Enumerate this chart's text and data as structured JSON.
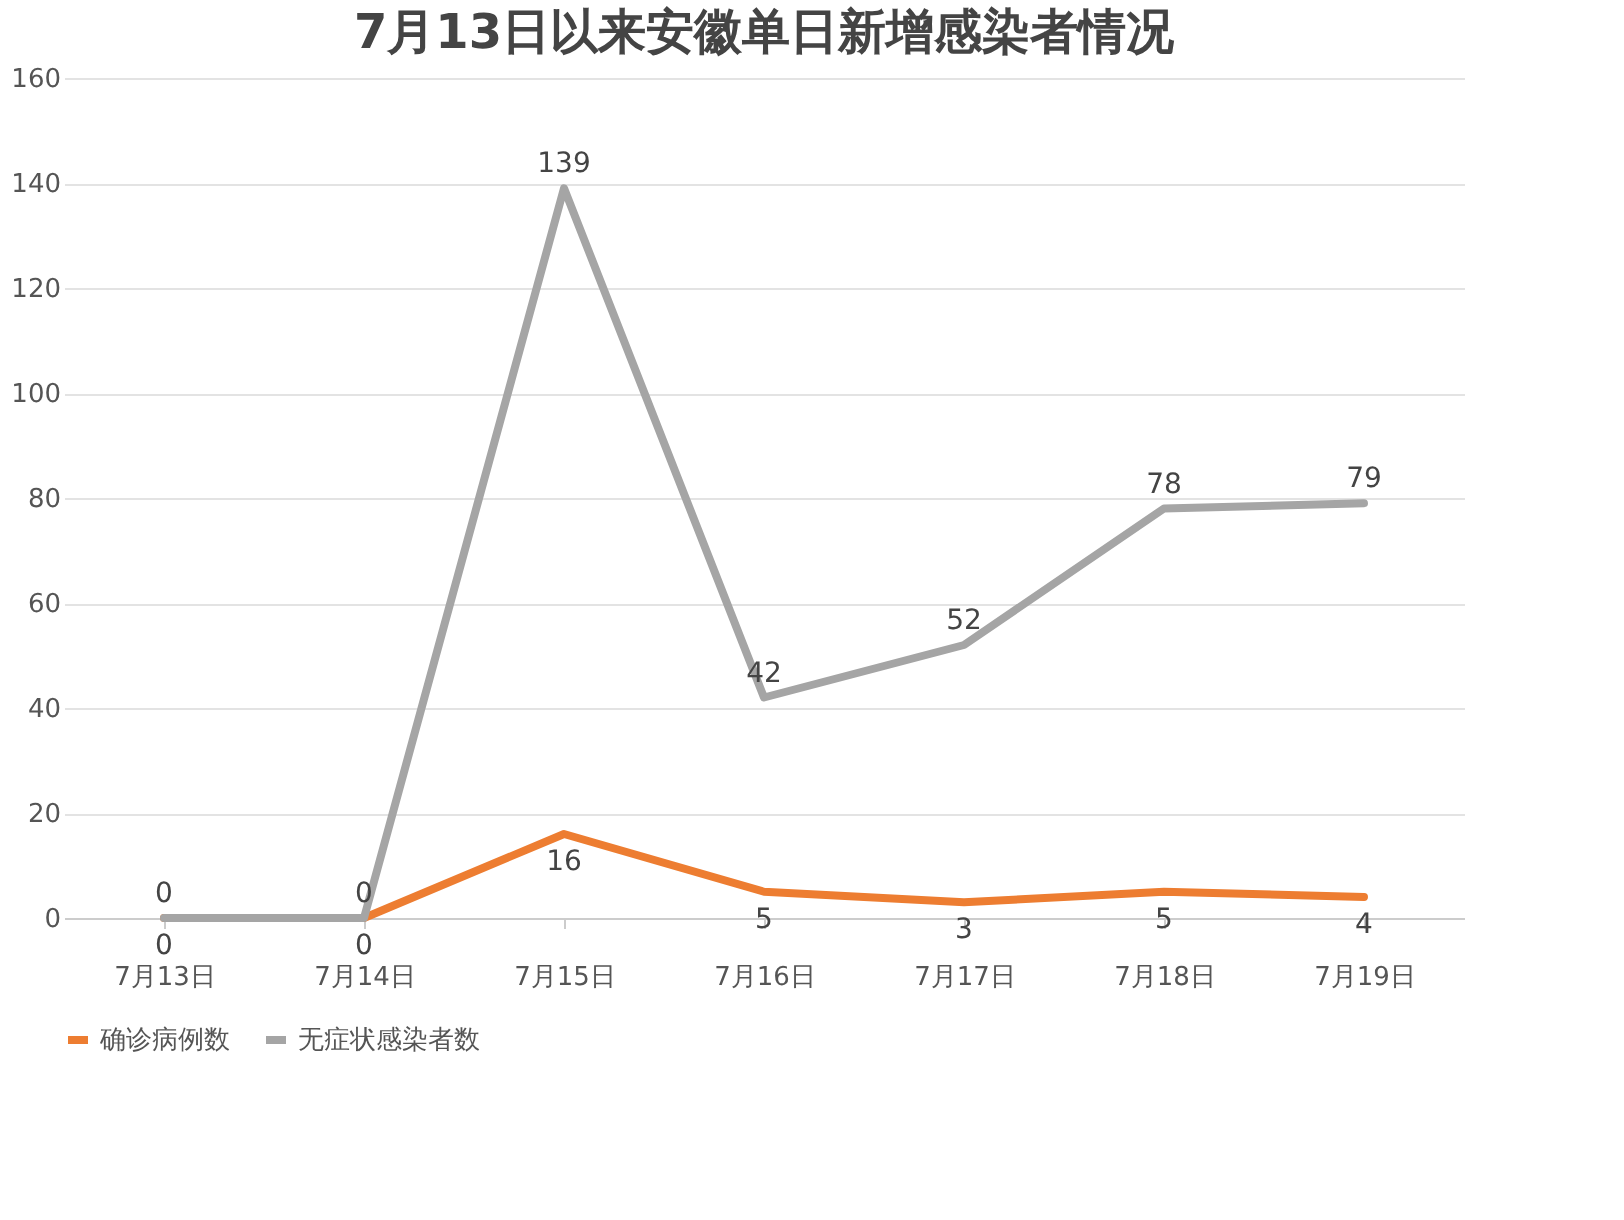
{
  "chart_data": {
    "type": "line",
    "title": "7月13日以来安徽单日新增感染者情况",
    "categories": [
      "7月13日",
      "7月14日",
      "7月15日",
      "7月16日",
      "7月17日",
      "7月18日",
      "7月19日"
    ],
    "series": [
      {
        "name": "确诊病例数",
        "color": "#ed7d31",
        "values": [
          0,
          0,
          16,
          5,
          3,
          5,
          4
        ]
      },
      {
        "name": "无症状感染者数",
        "color": "#a5a5a5",
        "values": [
          0,
          0,
          139,
          42,
          52,
          78,
          79
        ]
      }
    ],
    "ylim": [
      0,
      160
    ],
    "yticks": [
      0,
      20,
      40,
      60,
      80,
      100,
      120,
      140,
      160
    ],
    "grid": "y",
    "legend": "bottom",
    "data_labels": true,
    "marker": "none",
    "line_style": "solid"
  }
}
